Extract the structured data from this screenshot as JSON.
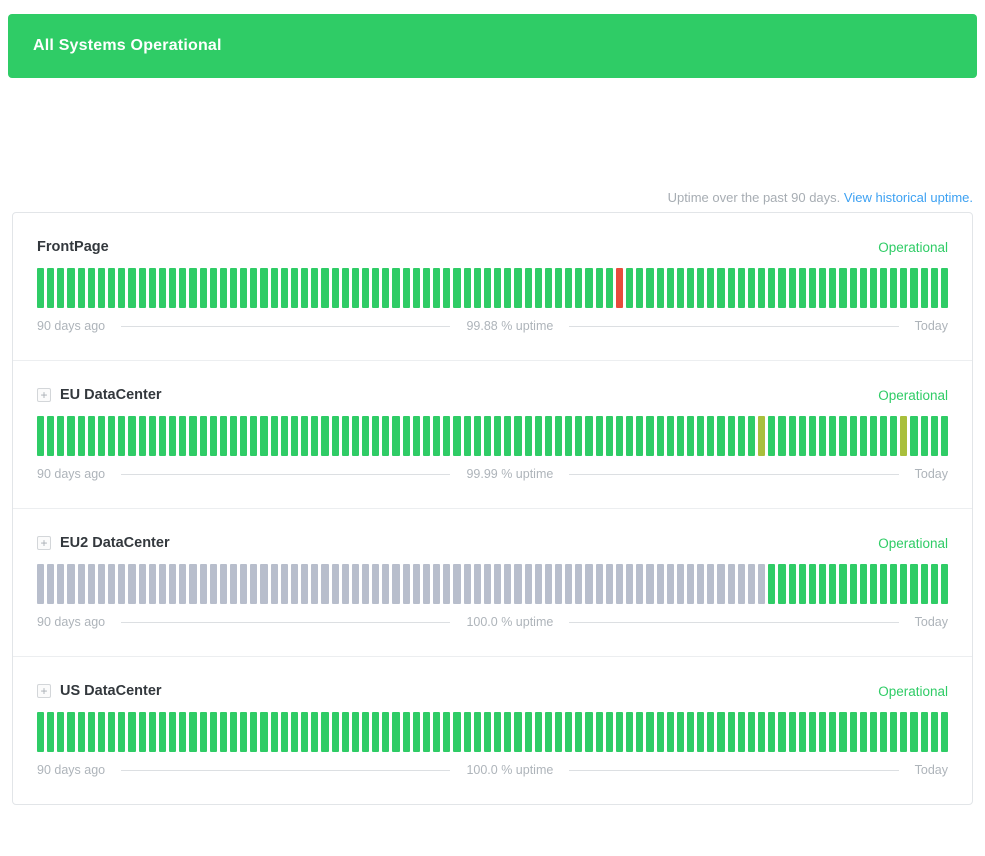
{
  "banner": {
    "text": "All Systems Operational"
  },
  "uptime_note": {
    "prefix": "Uptime over the past 90 days.",
    "link_text": "View historical uptime."
  },
  "icons": {
    "expand": "+"
  },
  "colors": {
    "banner_bg": "#2fcc66",
    "status_operational": "#2fcc66",
    "bar_up": "#2fcc66",
    "bar_major_outage": "#e74c3c",
    "bar_degraded": "#a9bf3c",
    "bar_no_data": "#b8becc",
    "link": "#3da1f2"
  },
  "components": [
    {
      "name": "FrontPage",
      "expandable": false,
      "status": "Operational",
      "left_label": "90 days ago",
      "uptime_label": "99.88 % uptime",
      "right_label": "Today",
      "bars_total": 90,
      "bar_segments": [
        {
          "status": "up",
          "count": 57
        },
        {
          "status": "major",
          "count": 1
        },
        {
          "status": "up",
          "count": 32
        }
      ]
    },
    {
      "name": "EU DataCenter",
      "expandable": true,
      "status": "Operational",
      "left_label": "90 days ago",
      "uptime_label": "99.99 % uptime",
      "right_label": "Today",
      "bars_total": 90,
      "bar_segments": [
        {
          "status": "up",
          "count": 71
        },
        {
          "status": "degraded",
          "count": 1
        },
        {
          "status": "up",
          "count": 13
        },
        {
          "status": "degraded",
          "count": 1
        },
        {
          "status": "up",
          "count": 4
        }
      ]
    },
    {
      "name": "EU2 DataCenter",
      "expandable": true,
      "status": "Operational",
      "left_label": "90 days ago",
      "uptime_label": "100.0 % uptime",
      "right_label": "Today",
      "bars_total": 90,
      "bar_segments": [
        {
          "status": "nodata",
          "count": 72
        },
        {
          "status": "up",
          "count": 18
        }
      ]
    },
    {
      "name": "US DataCenter",
      "expandable": true,
      "status": "Operational",
      "left_label": "90 days ago",
      "uptime_label": "100.0 % uptime",
      "right_label": "Today",
      "bars_total": 90,
      "bar_segments": [
        {
          "status": "up",
          "count": 90
        }
      ]
    }
  ]
}
